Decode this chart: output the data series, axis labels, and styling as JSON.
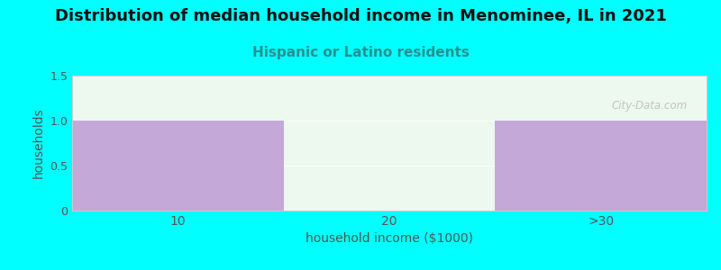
{
  "title": "Distribution of median household income in Menominee, IL in 2021",
  "subtitle": "Hispanic or Latino residents",
  "xlabel": "household income ($1000)",
  "ylabel": "households",
  "categories": [
    "10",
    "20",
    ">30"
  ],
  "values": [
    1,
    0,
    1
  ],
  "bar_colors": [
    "#c4a8d8",
    "#e8f5e2",
    "#c4a8d8"
  ],
  "background_color": "#00ffff",
  "plot_bg_color": "#edf8ee",
  "ylim": [
    0,
    1.5
  ],
  "yticks": [
    0,
    0.5,
    1.0,
    1.5
  ],
  "title_fontsize": 13,
  "subtitle_fontsize": 11,
  "subtitle_color": "#2a9090",
  "axis_label_color": "#555555",
  "tick_label_color": "#555555",
  "watermark": "City-Data.com",
  "bar_width": 1.0
}
